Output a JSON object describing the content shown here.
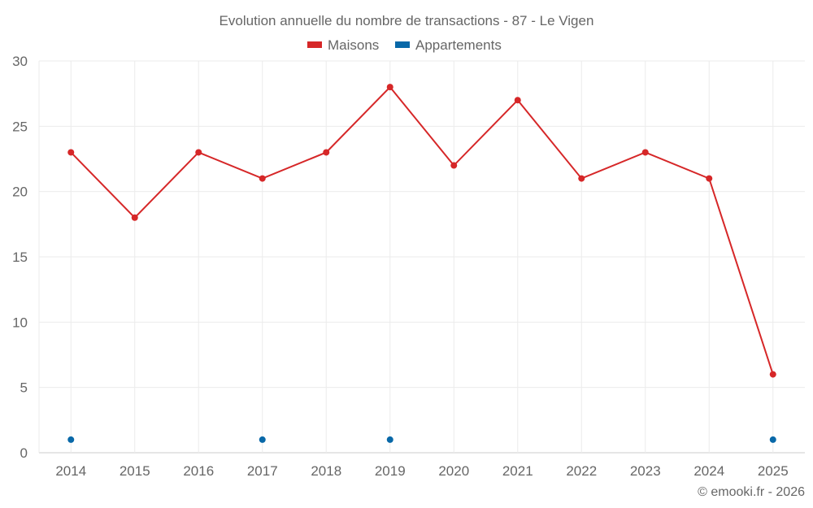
{
  "chart_data": {
    "type": "line",
    "title": "Evolution annuelle du nombre de transactions - 87 - Le Vigen",
    "categories": [
      "2014",
      "2015",
      "2016",
      "2017",
      "2018",
      "2019",
      "2020",
      "2021",
      "2022",
      "2023",
      "2024",
      "2025"
    ],
    "series": [
      {
        "name": "Maisons",
        "color": "#d62728",
        "values": [
          23,
          18,
          23,
          21,
          23,
          28,
          22,
          27,
          21,
          23,
          21,
          6
        ],
        "line": true
      },
      {
        "name": "Appartements",
        "color": "#0868a8",
        "values": [
          1,
          null,
          null,
          1,
          null,
          1,
          null,
          null,
          null,
          null,
          null,
          1
        ],
        "line": false
      }
    ],
    "yticks": [
      "0",
      "5",
      "10",
      "15",
      "20",
      "25",
      "30"
    ],
    "ylim": [
      0,
      30
    ],
    "xlabel": "",
    "ylabel": "",
    "grid": true,
    "legend": "top-center",
    "credit": "© emooki.fr - 2026"
  }
}
